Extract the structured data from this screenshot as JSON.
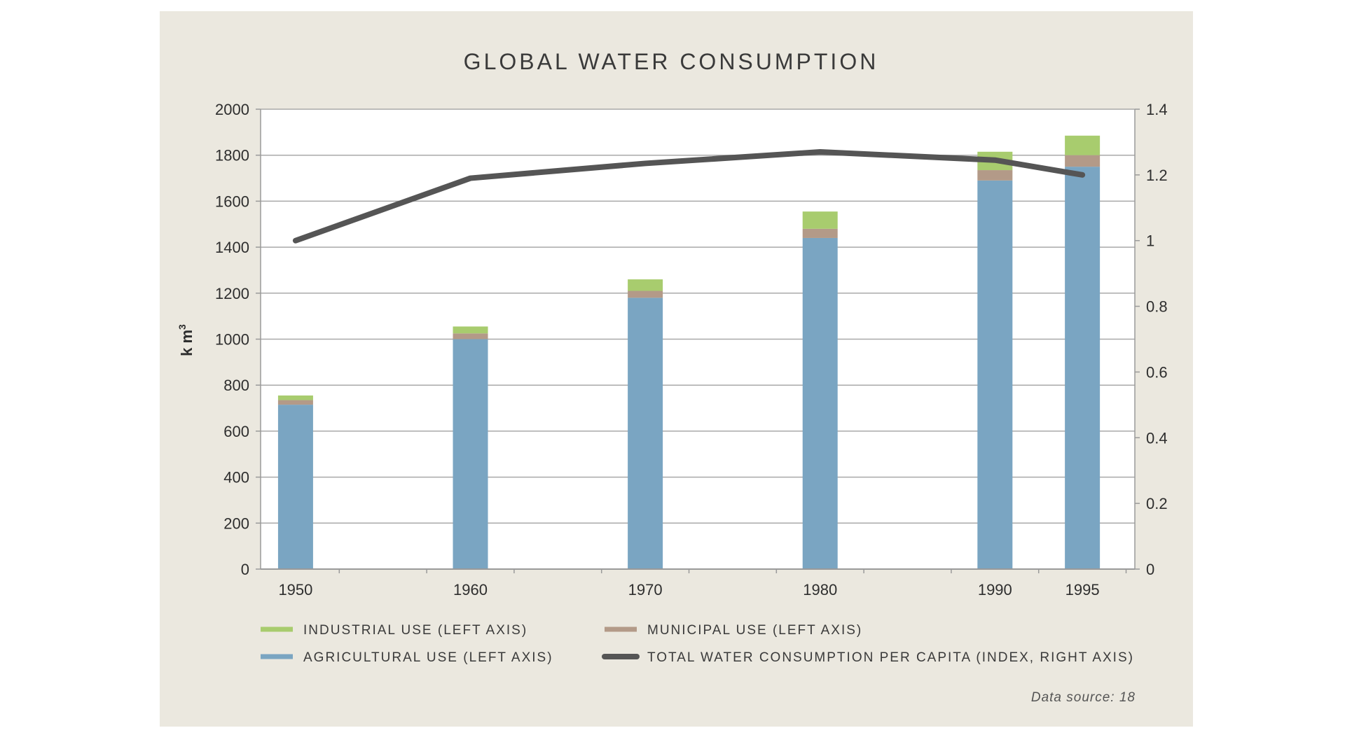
{
  "chart_data": {
    "type": "bar",
    "title": "GLOBAL WATER CONSUMPTION",
    "ylabel": "k m",
    "ylabel_superscript": "3",
    "ylim": [
      0,
      2000
    ],
    "y_ticks": [
      "0",
      "200",
      "400",
      "600",
      "800",
      "1000",
      "1200",
      "1400",
      "1600",
      "1800",
      "2000"
    ],
    "y_right_ticks": [
      "0",
      "0.2",
      "0.4",
      "0.6",
      "0.8",
      "1",
      "1.2",
      "1.4"
    ],
    "y_right_lim": [
      0,
      1.4
    ],
    "x_domain": [
      1948,
      1998
    ],
    "x_minor_ticks": [
      1950,
      1955,
      1960,
      1965,
      1970,
      1975,
      1980,
      1985,
      1990,
      1995
    ],
    "categories": [
      "1950",
      "1960",
      "1970",
      "1980",
      "1990",
      "1995"
    ],
    "x": [
      1950,
      1960,
      1970,
      1980,
      1990,
      1995
    ],
    "series": [
      {
        "name": "AGRICULTURAL USE (LEFT AXIS)",
        "kind": "bar",
        "color": "#7aa5c2",
        "values": [
          715,
          1000,
          1180,
          1440,
          1690,
          1750
        ]
      },
      {
        "name": "MUNICIPAL USE (LEFT AXIS)",
        "kind": "bar",
        "color": "#b39a88",
        "values": [
          20,
          25,
          30,
          40,
          45,
          50
        ]
      },
      {
        "name": "INDUSTRIAL USE (LEFT AXIS)",
        "kind": "bar",
        "color": "#a8cc6e",
        "values": [
          20,
          30,
          50,
          75,
          80,
          85
        ]
      },
      {
        "name": "TOTAL WATER CONSUMPTION PER CAPITA (INDEX, RIGHT AXIS)",
        "kind": "line",
        "axis": "right",
        "color": "#555555",
        "values": [
          1.0,
          1.19,
          1.235,
          1.27,
          1.245,
          1.2
        ]
      }
    ],
    "legend": {
      "placement": "bottom",
      "row1": [
        "INDUSTRIAL USE (LEFT AXIS)",
        "MUNICIPAL USE (LEFT AXIS)"
      ],
      "row2": [
        "AGRICULTURAL USE (LEFT AXIS)",
        "TOTAL WATER CONSUMPTION PER CAPITA (INDEX, RIGHT AXIS)"
      ]
    },
    "source": "Data source: 18",
    "grid": true
  },
  "colors": {
    "panel_bg": "#ebe8df",
    "plot_bg": "#ffffff",
    "grid": "#a9a9a9",
    "axis": "#9a9a9a",
    "line": "#555555"
  }
}
